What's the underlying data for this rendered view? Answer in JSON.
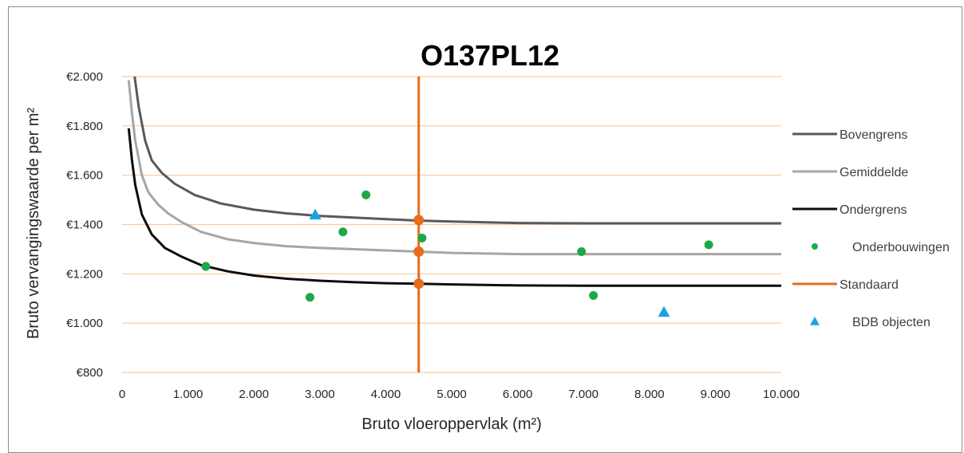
{
  "chart_data": {
    "type": "scatter",
    "title": "O137PL12",
    "xlabel": "Bruto vloeroppervlak (m²)",
    "ylabel": "Bruto vervangingswaarde per m²",
    "xlim": [
      0,
      10000
    ],
    "ylim": [
      800,
      2000
    ],
    "x_ticks": [
      "0",
      "1.000",
      "2.000",
      "3.000",
      "4.000",
      "5.000",
      "6.000",
      "7.000",
      "8.000",
      "9.000",
      "10.000"
    ],
    "y_ticks": [
      "€800",
      "€1.000",
      "€1.200",
      "€1.400",
      "€1.600",
      "€1.800",
      "€2.000"
    ],
    "grid": "horizontal",
    "legend_position": "right",
    "series": [
      {
        "name": "Bovengrens",
        "kind": "line",
        "color": "#595959",
        "points": [
          [
            190,
            2000
          ],
          [
            250,
            1880
          ],
          [
            350,
            1740
          ],
          [
            450,
            1660
          ],
          [
            600,
            1610
          ],
          [
            800,
            1565
          ],
          [
            1100,
            1520
          ],
          [
            1500,
            1485
          ],
          [
            2000,
            1460
          ],
          [
            2500,
            1445
          ],
          [
            3000,
            1435
          ],
          [
            3500,
            1428
          ],
          [
            4000,
            1422
          ],
          [
            4500,
            1416
          ],
          [
            5000,
            1412
          ],
          [
            6000,
            1406
          ],
          [
            7000,
            1405
          ],
          [
            8000,
            1405
          ],
          [
            9000,
            1405
          ],
          [
            10000,
            1405
          ]
        ]
      },
      {
        "name": "Gemiddelde",
        "kind": "line",
        "color": "#a6a6a6",
        "points": [
          [
            100,
            1985
          ],
          [
            150,
            1850
          ],
          [
            200,
            1740
          ],
          [
            300,
            1600
          ],
          [
            400,
            1530
          ],
          [
            550,
            1480
          ],
          [
            700,
            1445
          ],
          [
            900,
            1410
          ],
          [
            1200,
            1370
          ],
          [
            1600,
            1340
          ],
          [
            2000,
            1325
          ],
          [
            2500,
            1312
          ],
          [
            3000,
            1305
          ],
          [
            3500,
            1300
          ],
          [
            4000,
            1295
          ],
          [
            4500,
            1290
          ],
          [
            5000,
            1285
          ],
          [
            6000,
            1280
          ],
          [
            7000,
            1280
          ],
          [
            8000,
            1280
          ],
          [
            9000,
            1280
          ],
          [
            10000,
            1280
          ]
        ]
      },
      {
        "name": "Ondergrens",
        "kind": "line",
        "color": "#0d0d0d",
        "points": [
          [
            100,
            1790
          ],
          [
            150,
            1660
          ],
          [
            200,
            1560
          ],
          [
            300,
            1440
          ],
          [
            450,
            1360
          ],
          [
            650,
            1305
          ],
          [
            900,
            1270
          ],
          [
            1200,
            1235
          ],
          [
            1600,
            1210
          ],
          [
            2000,
            1193
          ],
          [
            2500,
            1180
          ],
          [
            3000,
            1172
          ],
          [
            3500,
            1166
          ],
          [
            4000,
            1162
          ],
          [
            4500,
            1160
          ],
          [
            5000,
            1157
          ],
          [
            6000,
            1153
          ],
          [
            7000,
            1152
          ],
          [
            8000,
            1152
          ],
          [
            9000,
            1152
          ],
          [
            10000,
            1152
          ]
        ]
      },
      {
        "name": "Onderbouwingen",
        "kind": "scatter-circle",
        "color": "#1fa84a",
        "points": [
          [
            1270,
            1230
          ],
          [
            2850,
            1105
          ],
          [
            3350,
            1370
          ],
          [
            3700,
            1520
          ],
          [
            4550,
            1345
          ],
          [
            6970,
            1290
          ],
          [
            7150,
            1112
          ],
          [
            8900,
            1318
          ]
        ]
      },
      {
        "name": "Standaard",
        "kind": "vline",
        "color": "#e86c1c",
        "x": 4500,
        "points": [
          [
            4500,
            1418
          ],
          [
            4500,
            1290
          ],
          [
            4500,
            1160
          ]
        ]
      },
      {
        "name": "BDB objecten",
        "kind": "scatter-triangle",
        "color": "#1aa3e0",
        "points": [
          [
            2930,
            1440
          ],
          [
            8220,
            1045
          ]
        ]
      }
    ]
  }
}
